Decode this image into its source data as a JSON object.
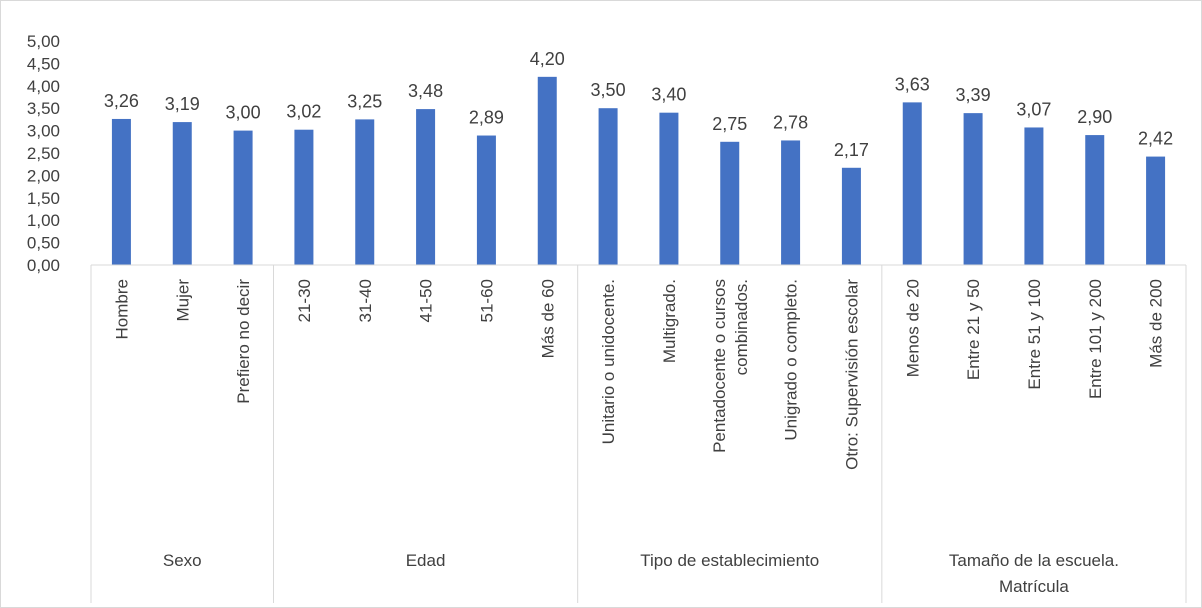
{
  "chart_data": {
    "type": "bar",
    "ylim": [
      0,
      5
    ],
    "ytick_step": 0.5,
    "ytick_labels": [
      "0,00",
      "0,50",
      "1,00",
      "1,50",
      "2,00",
      "2,50",
      "3,00",
      "3,50",
      "4,00",
      "4,50",
      "5,00"
    ],
    "grid": false,
    "legend": "none",
    "bar_color": "#4472C4",
    "axis_color": "#D9D9D9",
    "groups": [
      {
        "label": "Sexo",
        "categories": [
          {
            "label": [
              "Hombre"
            ],
            "value": 3.26,
            "value_label": "3,26"
          },
          {
            "label": [
              "Mujer"
            ],
            "value": 3.19,
            "value_label": "3,19"
          },
          {
            "label": [
              "Prefiero no decir"
            ],
            "value": 3.0,
            "value_label": "3,00"
          }
        ]
      },
      {
        "label": "Edad",
        "categories": [
          {
            "label": [
              "21-30"
            ],
            "value": 3.02,
            "value_label": "3,02"
          },
          {
            "label": [
              "31-40"
            ],
            "value": 3.25,
            "value_label": "3,25"
          },
          {
            "label": [
              "41-50"
            ],
            "value": 3.48,
            "value_label": "3,48"
          },
          {
            "label": [
              "51-60"
            ],
            "value": 2.89,
            "value_label": "2,89"
          },
          {
            "label": [
              "Más de 60"
            ],
            "value": 4.2,
            "value_label": "4,20"
          }
        ]
      },
      {
        "label": "Tipo de establecimiento",
        "categories": [
          {
            "label": [
              "Unitario o unidocente."
            ],
            "value": 3.5,
            "value_label": "3,50"
          },
          {
            "label": [
              "Multigrado."
            ],
            "value": 3.4,
            "value_label": "3,40"
          },
          {
            "label": [
              "Pentadocente o cursos",
              "combinados."
            ],
            "value": 2.75,
            "value_label": "2,75"
          },
          {
            "label": [
              "Unigrado o completo."
            ],
            "value": 2.78,
            "value_label": "2,78"
          },
          {
            "label": [
              "Otro: Supervisión escolar"
            ],
            "value": 2.17,
            "value_label": "2,17"
          }
        ]
      },
      {
        "label_lines": [
          "Tamaño de la escuela.",
          "Matrícula"
        ],
        "categories": [
          {
            "label": [
              "Menos de 20"
            ],
            "value": 3.63,
            "value_label": "3,63"
          },
          {
            "label": [
              "Entre 21 y 50"
            ],
            "value": 3.39,
            "value_label": "3,39"
          },
          {
            "label": [
              "Entre 51 y 100"
            ],
            "value": 3.07,
            "value_label": "3,07"
          },
          {
            "label": [
              "Entre 101 y 200"
            ],
            "value": 2.9,
            "value_label": "2,90"
          },
          {
            "label": [
              "Más de 200"
            ],
            "value": 2.42,
            "value_label": "2,42"
          }
        ]
      }
    ]
  }
}
